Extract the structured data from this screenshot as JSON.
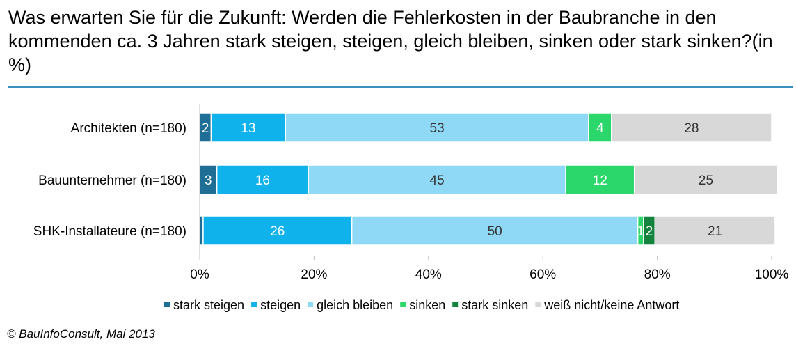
{
  "title": "Was erwarten Sie für die Zukunft: Werden die Fehlerkosten in der Baubranche in den kommenden ca. 3 Jahren stark steigen, steigen, gleich bleiben, sinken oder stark sinken?(in %)",
  "source": "© BauInfoConsult, Mai 2013",
  "colors": {
    "stark steigen": "#1f6e96",
    "steigen": "#0fb2ea",
    "gleich bleiben": "#8fd8f6",
    "sinken": "#2bd66a",
    "stark sinken": "#13833d",
    "weiß nicht/keine Antwort": "#d8d8d8"
  },
  "chart_data": {
    "type": "bar",
    "orientation": "horizontal",
    "stacked": true,
    "xlim": [
      0,
      100
    ],
    "xticks": [
      "0%",
      "20%",
      "40%",
      "60%",
      "80%",
      "100%"
    ],
    "legend_position": "bottom",
    "categories": [
      "Architekten (n=180)",
      "Bauunternehmer (n=180)",
      "SHK-Installateure (n=180)"
    ],
    "series": [
      {
        "name": "stark steigen",
        "values": [
          2,
          3,
          0.6
        ],
        "labels": [
          "2",
          "3",
          ""
        ]
      },
      {
        "name": "steigen",
        "values": [
          13,
          16,
          26
        ],
        "labels": [
          "13",
          "16",
          "26"
        ]
      },
      {
        "name": "gleich bleiben",
        "values": [
          53,
          45,
          50
        ],
        "labels": [
          "53",
          "45",
          "50"
        ]
      },
      {
        "name": "sinken",
        "values": [
          4,
          12,
          1
        ],
        "labels": [
          "4",
          "12",
          "1"
        ]
      },
      {
        "name": "stark sinken",
        "values": [
          0,
          0,
          2
        ],
        "labels": [
          "",
          "",
          "2"
        ]
      },
      {
        "name": "weiß nicht/keine Antwort",
        "values": [
          28,
          25,
          21
        ],
        "labels": [
          "28",
          "25",
          "21"
        ]
      }
    ]
  }
}
